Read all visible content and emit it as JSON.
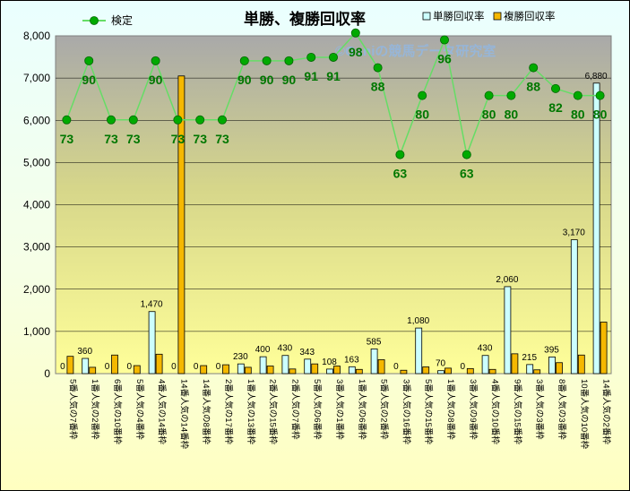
{
  "chart_data": {
    "type": "bar",
    "title": "単勝、複勝回収率",
    "watermark": "©Ganiの競馬データ研究室",
    "xlabel": "",
    "ylabel": "",
    "ylim": [
      0,
      8000
    ],
    "y_ticks": [
      "0",
      "1,000",
      "2,000",
      "3,000",
      "4,000",
      "5,000",
      "6,000",
      "7,000",
      "8,000"
    ],
    "legend_position": "top",
    "grid": true,
    "colors": {
      "tansho": "#ccffff",
      "fukusho": "#f5b800",
      "kentei_line": "#66dd66",
      "kentei_marker": "#00aa00",
      "kentei_label": "#007700",
      "plot_bg_top": "#a9a9a9",
      "plot_bg_bottom": "#ffff99"
    },
    "categories": [
      "5番人気の7番枠",
      "1番人気の2番枠",
      "6番人気の10番枠",
      "5番人気の4番枠",
      "4番人気の14番枠",
      "14番人気の14番枠",
      "14番人気の8番枠",
      "2番人気の17番枠",
      "1番人気の13番枠",
      "2番人気の15番枠",
      "2番人気の7番枠",
      "5番人気の6番枠",
      "3番人気の1番枠",
      "1番人気の6番枠",
      "5番人気の2番枠",
      "3番人気の16番枠",
      "5番人気の15番枠",
      "1番人気の8番枠",
      "3番人気の9番枠",
      "4番人気の10番枠",
      "9番人気の15番枠",
      "3番人気の3番枠",
      "8番人気の3番枠",
      "10番人気の10番枠",
      "14番人気の2番枠"
    ],
    "series": [
      {
        "name": "単勝回収率",
        "kind": "bar",
        "values": [
          0,
          360,
          0,
          0,
          1470,
          0,
          0,
          0,
          230,
          400,
          430,
          343,
          108,
          163,
          585,
          0,
          1080,
          70,
          0,
          430,
          2060,
          215,
          395,
          3170,
          6880
        ],
        "labels": [
          "0",
          "360",
          "0",
          "0",
          "1,470",
          "0",
          "0",
          "0",
          "230",
          "400",
          "430",
          "343",
          "108",
          "163",
          "585",
          "0",
          "1,080",
          "70",
          "0",
          "430",
          "2,060",
          "215",
          "395",
          "3,170",
          "6,880"
        ]
      },
      {
        "name": "複勝回収率",
        "kind": "bar",
        "values": [
          410,
          150,
          440,
          190,
          460,
          7050,
          190,
          210,
          150,
          180,
          110,
          230,
          180,
          100,
          330,
          80,
          160,
          130,
          120,
          100,
          470,
          90,
          260,
          440,
          1220
        ]
      },
      {
        "name": "検定",
        "kind": "line",
        "values": [
          73,
          90,
          73,
          73,
          90,
          73,
          73,
          73,
          90,
          90,
          90,
          91,
          91,
          98,
          88,
          63,
          80,
          96,
          63,
          80,
          80,
          88,
          82,
          80,
          80
        ]
      }
    ]
  }
}
